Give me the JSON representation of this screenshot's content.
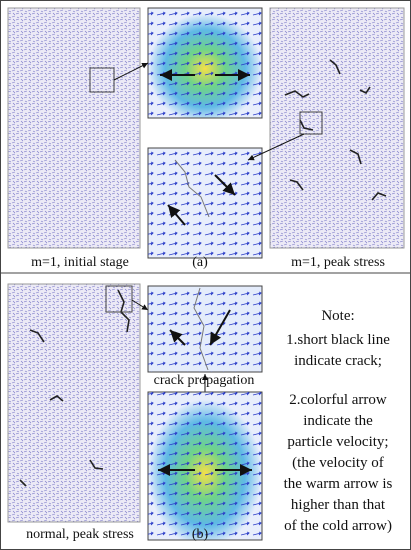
{
  "panel_a": {
    "label": "(a)",
    "left_caption": "m=1, initial stage",
    "right_caption": "m=1, peak stress"
  },
  "panel_b": {
    "label": "(b)",
    "left_caption": "normal, peak stress",
    "zoom_caption": "crack propagation",
    "note": {
      "title": "Note:",
      "lines": [
        "1.short black line",
        "indicate crack;",
        "2.colorful arrow",
        "indicate the",
        "particle velocity;",
        "(the velocity of",
        "the warm arrow is",
        "higher than that",
        "of the cold arrow)"
      ]
    }
  }
}
